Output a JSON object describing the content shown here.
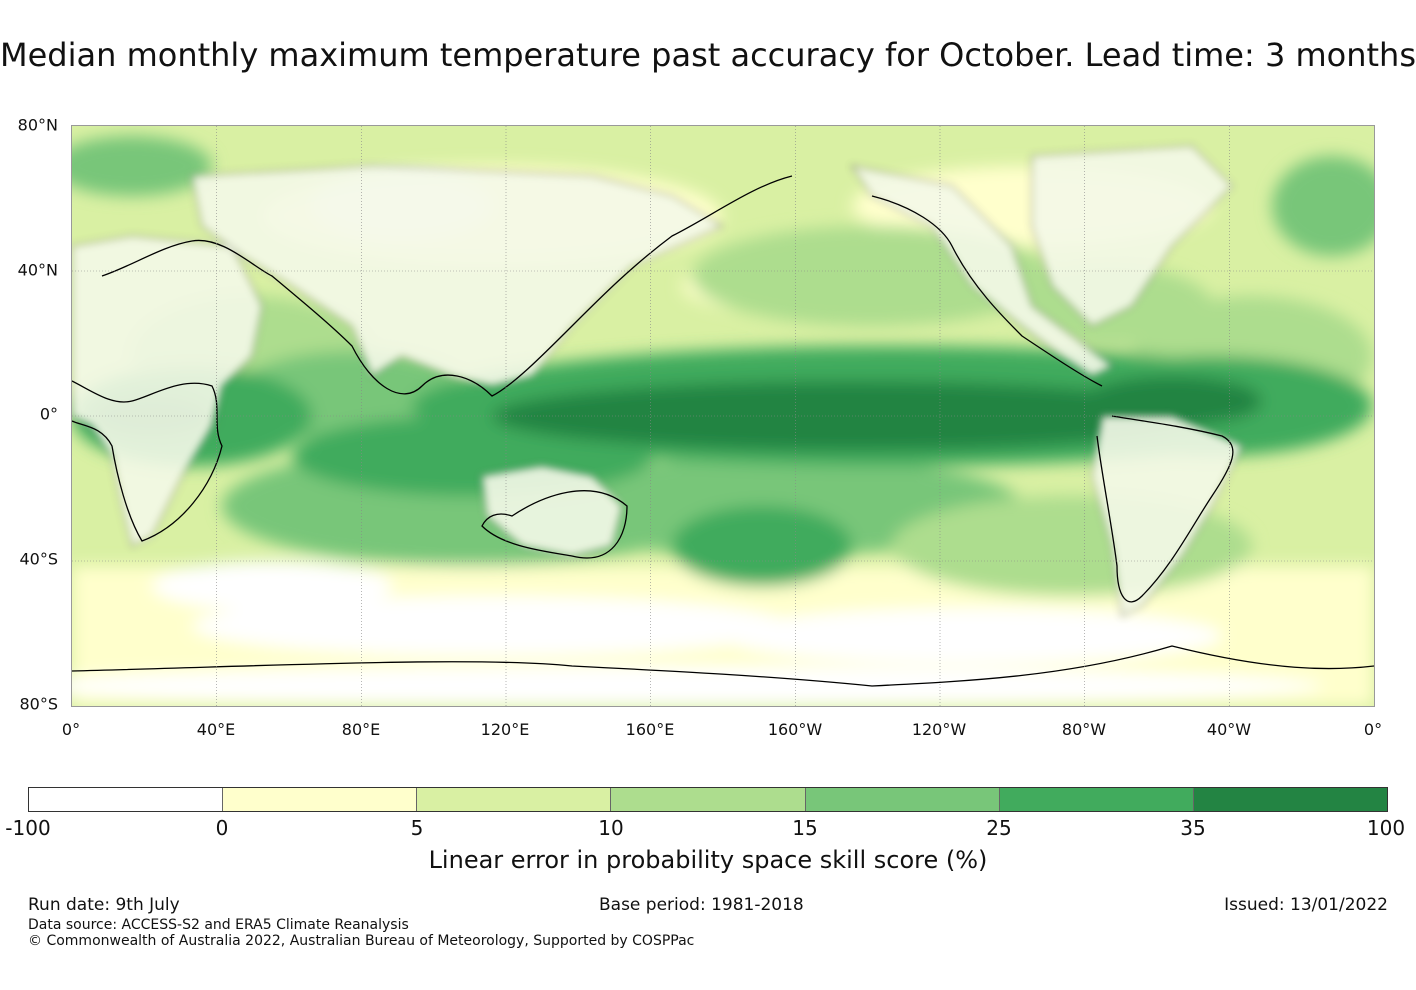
{
  "title": "Median monthly maximum temperature past accuracy for October. Lead time: 3 months",
  "map": {
    "lat_labels": [
      "80°N",
      "40°N",
      "0°",
      "40°S",
      "80°S"
    ],
    "lon_labels": [
      "0°",
      "40°E",
      "80°E",
      "120°E",
      "160°E",
      "160°W",
      "120°W",
      "80°W",
      "40°W",
      "0°"
    ],
    "palette": [
      "#ffffff",
      "#ffffcc",
      "#d9f0a3",
      "#addd8e",
      "#78c679",
      "#41ab5d",
      "#238443"
    ],
    "land_color": "#f4f9e8",
    "coast_color": "#000000"
  },
  "colorbar": {
    "ticks": [
      "-100",
      "0",
      "5",
      "10",
      "15",
      "25",
      "35",
      "100"
    ],
    "colors": [
      "#ffffff",
      "#ffffcc",
      "#d9f0a3",
      "#addd8e",
      "#78c679",
      "#41ab5d",
      "#238443"
    ],
    "label": "Linear error in probability space skill score (%)"
  },
  "footer": {
    "run_date": "Run date: 9th July",
    "base_period": "Base period: 1981-2018",
    "issued": "Issued: 13/01/2022",
    "data_source": "Data source: ACCESS-S2 and ERA5 Climate Reanalysis",
    "copyright": "© Commonwealth of Australia 2022, Australian Bureau of Meteorology, Supported by COSPPac"
  }
}
